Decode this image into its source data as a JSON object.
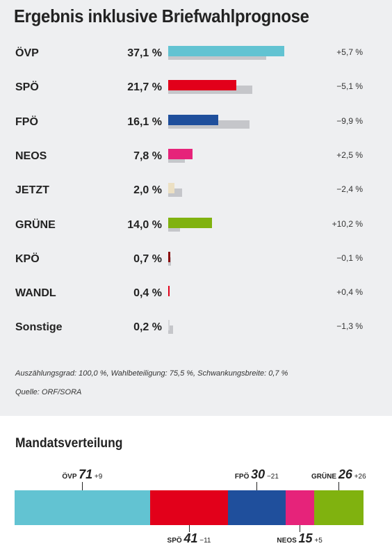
{
  "title": "Ergebnis inklusive Briefwahlprognose",
  "chart_data": [
    {
      "type": "bar",
      "categories": [
        "ÖVP",
        "SPÖ",
        "FPÖ",
        "NEOS",
        "JETZT",
        "GRÜNE",
        "KPÖ",
        "WANDL",
        "Sonstige"
      ],
      "series": [
        {
          "values": [
            37.1,
            21.7,
            16.1,
            7.8,
            2.0,
            14.0,
            0.7,
            0.4,
            0.2
          ]
        },
        {
          "values": [
            31.4,
            26.8,
            26.0,
            5.3,
            4.4,
            3.8,
            0.8,
            0.0,
            1.5
          ]
        }
      ],
      "value_labels": [
        "37,1 %",
        "21,7 %",
        "16,1 %",
        "7,8 %",
        "2,0 %",
        "14,0 %",
        "0,7 %",
        "0,4 %",
        "0,2 %"
      ],
      "diff_labels": [
        "+5,7 %",
        "−5,1 %",
        "−9,9 %",
        "+2,5 %",
        "−2,4 %",
        "+10,2 %",
        "−0,1 %",
        "+0,4 %",
        "−1,3 %"
      ],
      "colors": [
        "#62c3d2",
        "#e2001a",
        "#1f4f9c",
        "#e6237a",
        "#ece0c3",
        "#80b20f",
        "#8a0f10",
        "#e2001a",
        "#d6d7da"
      ],
      "prev_color": "#c5c6ca",
      "xlim": [
        0,
        37.1
      ]
    },
    {
      "type": "bar",
      "stacked": true,
      "title": "Mandatsverteilung",
      "categories": [
        "ÖVP",
        "SPÖ",
        "FPÖ",
        "NEOS",
        "GRÜNE"
      ],
      "values": [
        71,
        41,
        30,
        15,
        26
      ],
      "changes": [
        "+9",
        "−11",
        "−21",
        "+5",
        "+26"
      ],
      "colors": [
        "#62c3d2",
        "#e2001a",
        "#1f4f9c",
        "#e6237a",
        "#80b20f"
      ]
    }
  ],
  "footnote": "Auszählungsgrad: 100,0 %, Wahlbeteiligung: 75,5 %, Schwankungsbreite: 0,7 %",
  "source": "Quelle: ORF/SORA"
}
